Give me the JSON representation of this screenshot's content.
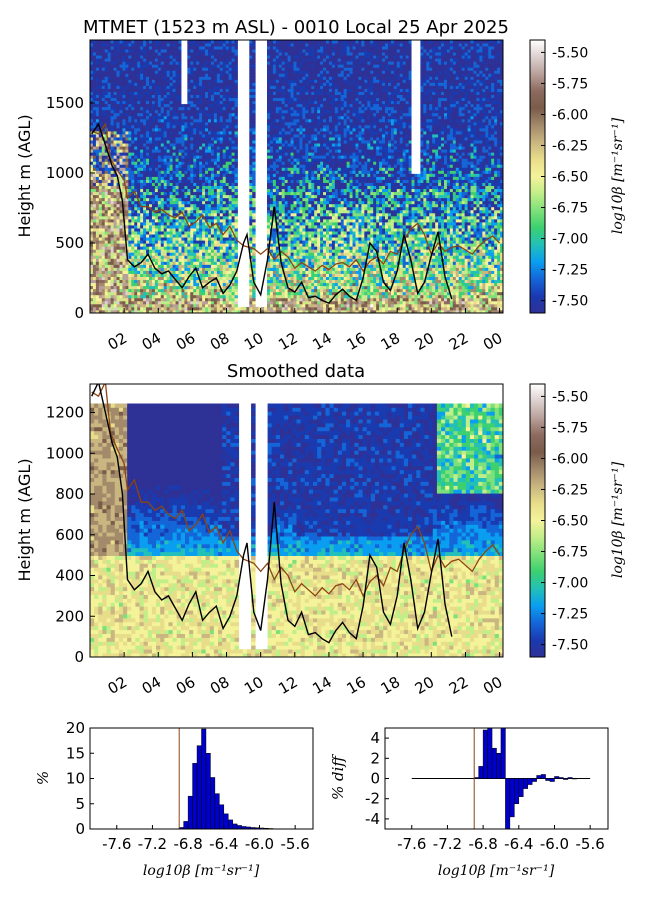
{
  "chart_data": [
    {
      "type": "heatmap",
      "title": "MTMET (1523 m ASL) - 0010 Local 25 Apr 2025",
      "ylabel": "Height m (AGL)",
      "xlabel": "",
      "ylim": [
        0,
        1950
      ],
      "yticks": [
        "0",
        "500",
        "1000",
        "1500"
      ],
      "ytick_values": [
        0,
        500,
        1000,
        1500
      ],
      "xticks": [
        "02",
        "04",
        "06",
        "08",
        "10",
        "12",
        "14",
        "16",
        "18",
        "20",
        "22",
        "00"
      ],
      "colorbar": {
        "label": "log10β [m⁻¹sr⁻¹]",
        "ticks": [
          "-5.50",
          "-5.75",
          "-6.00",
          "-6.25",
          "-6.50",
          "-6.75",
          "-7.00",
          "-7.25",
          "-7.50"
        ],
        "range": [
          -7.6,
          -5.4
        ]
      },
      "series": [
        {
          "values": [
            [
              0.1,
              1300
            ],
            [
              0.5,
              1280
            ],
            [
              0.9,
              1350
            ],
            [
              1.2,
              1100
            ],
            [
              1.6,
              1020
            ],
            [
              2.0,
              950
            ],
            [
              2.2,
              820
            ],
            [
              2.6,
              870
            ],
            [
              3.0,
              760
            ],
            [
              3.4,
              760
            ],
            [
              3.8,
              720
            ],
            [
              4.2,
              740
            ],
            [
              4.6,
              700
            ],
            [
              5.0,
              680
            ],
            [
              5.4,
              720
            ],
            [
              5.8,
              620
            ],
            [
              6.2,
              650
            ],
            [
              6.6,
              700
            ],
            [
              7.0,
              610
            ],
            [
              7.4,
              640
            ],
            [
              7.8,
              560
            ],
            [
              8.2,
              620
            ],
            [
              8.6,
              520
            ],
            [
              9.0,
              480
            ],
            [
              9.6,
              460
            ],
            [
              10.0,
              420
            ],
            [
              10.4,
              460
            ],
            [
              10.8,
              380
            ],
            [
              11.2,
              440
            ],
            [
              11.6,
              400
            ],
            [
              12.0,
              320
            ],
            [
              12.4,
              360
            ],
            [
              12.8,
              330
            ],
            [
              13.2,
              300
            ],
            [
              13.6,
              340
            ],
            [
              14.0,
              310
            ],
            [
              14.4,
              350
            ],
            [
              14.8,
              360
            ],
            [
              15.2,
              330
            ],
            [
              15.6,
              380
            ],
            [
              16.0,
              300
            ],
            [
              16.4,
              370
            ],
            [
              16.8,
              400
            ],
            [
              17.2,
              350
            ],
            [
              17.6,
              440
            ],
            [
              18.0,
              420
            ],
            [
              18.4,
              520
            ],
            [
              18.8,
              600
            ],
            [
              19.2,
              640
            ],
            [
              19.6,
              560
            ],
            [
              20.0,
              420
            ],
            [
              20.4,
              500
            ],
            [
              20.8,
              440
            ],
            [
              21.2,
              470
            ],
            [
              21.6,
              480
            ],
            [
              22.0,
              450
            ],
            [
              22.4,
              420
            ],
            [
              22.8,
              480
            ],
            [
              23.2,
              520
            ],
            [
              23.6,
              550
            ],
            [
              24.0,
              500
            ]
          ]
        },
        {
          "values": [
            [
              0.1,
              1280
            ],
            [
              0.5,
              1350
            ],
            [
              0.9,
              1200
            ],
            [
              1.3,
              1050
            ],
            [
              1.6,
              980
            ],
            [
              1.9,
              800
            ],
            [
              2.2,
              380
            ],
            [
              2.6,
              330
            ],
            [
              3.0,
              360
            ],
            [
              3.4,
              420
            ],
            [
              3.8,
              320
            ],
            [
              4.2,
              280
            ],
            [
              4.6,
              300
            ],
            [
              5.0,
              240
            ],
            [
              5.4,
              180
            ],
            [
              5.8,
              260
            ],
            [
              6.2,
              320
            ],
            [
              6.6,
              180
            ],
            [
              7.0,
              220
            ],
            [
              7.4,
              250
            ],
            [
              7.8,
              140
            ],
            [
              8.2,
              200
            ],
            [
              8.6,
              300
            ],
            [
              9.0,
              500
            ],
            [
              9.2,
              560
            ],
            [
              9.6,
              220
            ],
            [
              10.0,
              130
            ],
            [
              10.4,
              380
            ],
            [
              10.8,
              760
            ],
            [
              11.2,
              360
            ],
            [
              11.6,
              180
            ],
            [
              12.0,
              150
            ],
            [
              12.4,
              220
            ],
            [
              12.8,
              110
            ],
            [
              13.2,
              120
            ],
            [
              13.6,
              90
            ],
            [
              14.0,
              70
            ],
            [
              14.4,
              130
            ],
            [
              14.8,
              170
            ],
            [
              15.2,
              120
            ],
            [
              15.6,
              90
            ],
            [
              16.0,
              250
            ],
            [
              16.4,
              500
            ],
            [
              16.8,
              440
            ],
            [
              17.2,
              220
            ],
            [
              17.6,
              160
            ],
            [
              18.0,
              300
            ],
            [
              18.4,
              560
            ],
            [
              18.8,
              380
            ],
            [
              19.2,
              140
            ],
            [
              19.6,
              220
            ],
            [
              20.0,
              410
            ],
            [
              20.4,
              580
            ],
            [
              20.8,
              260
            ],
            [
              21.2,
              100
            ]
          ]
        }
      ]
    },
    {
      "type": "heatmap",
      "title": "Smoothed data",
      "ylabel": "Height m (AGL)",
      "xlabel": "",
      "ylim": [
        0,
        1340
      ],
      "yticks": [
        "0",
        "200",
        "400",
        "600",
        "800",
        "1000",
        "1200"
      ],
      "ytick_values": [
        0,
        200,
        400,
        600,
        800,
        1000,
        1200
      ],
      "xticks": [
        "02",
        "04",
        "06",
        "08",
        "10",
        "12",
        "14",
        "16",
        "18",
        "20",
        "22",
        "00"
      ],
      "colorbar": {
        "label": "log10β [m⁻¹sr⁻¹]",
        "ticks": [
          "-5.50",
          "-5.75",
          "-6.00",
          "-6.25",
          "-6.50",
          "-6.75",
          "-7.00",
          "-7.25",
          "-7.50"
        ],
        "range": [
          -7.6,
          -5.4
        ]
      }
    },
    {
      "type": "bar",
      "title": "",
      "ylabel": "%",
      "xlabel": "log10β [m⁻¹sr⁻¹]",
      "xticks": [
        "-7.6",
        "-7.2",
        "-6.8",
        "-6.4",
        "-6.0",
        "-5.6"
      ],
      "xtick_values": [
        -7.6,
        -7.2,
        -6.8,
        -6.4,
        -6.0,
        -5.6
      ],
      "xlim": [
        -7.9,
        -5.4
      ],
      "ylim": [
        0,
        20
      ],
      "yticks": [
        "0",
        "5",
        "10",
        "15",
        "20"
      ],
      "ytick_values": [
        0,
        5,
        10,
        15,
        20
      ],
      "bin_width": 0.05,
      "bins": [
        -6.9,
        -6.85,
        -6.8,
        -6.75,
        -6.7,
        -6.65,
        -6.6,
        -6.55,
        -6.5,
        -6.45,
        -6.4,
        -6.35,
        -6.3,
        -6.25,
        -6.2,
        -6.15,
        -6.1,
        -6.05,
        -6.0,
        -5.95,
        -5.9
      ],
      "values": [
        0.3,
        1.5,
        6.5,
        13.0,
        16.5,
        19.8,
        15.0,
        10.2,
        7.0,
        4.8,
        3.0,
        1.8,
        1.0,
        0.7,
        0.5,
        0.4,
        0.3,
        0.25,
        0.2,
        0.15,
        0.1
      ],
      "vline": -6.9
    },
    {
      "type": "bar",
      "title": "",
      "ylabel": "% diff",
      "xlabel": "log10β [m⁻¹sr⁻¹]",
      "xticks": [
        "-7.6",
        "-7.2",
        "-6.8",
        "-6.4",
        "-6.0",
        "-5.6"
      ],
      "xtick_values": [
        -7.6,
        -7.2,
        -6.8,
        -6.4,
        -6.0,
        -5.6
      ],
      "xlim": [
        -7.9,
        -5.4
      ],
      "ylim": [
        -5,
        5
      ],
      "yticks": [
        "-4",
        "-2",
        "0",
        "2",
        "4"
      ],
      "ytick_values": [
        -4,
        -2,
        0,
        2,
        4
      ],
      "bin_width": 0.05,
      "bins": [
        -6.9,
        -6.85,
        -6.8,
        -6.75,
        -6.7,
        -6.65,
        -6.6,
        -6.55,
        -6.5,
        -6.45,
        -6.4,
        -6.35,
        -6.3,
        -6.25,
        -6.2,
        -6.15,
        -6.1,
        -6.05,
        -6.0,
        -5.95,
        -5.9,
        -5.85,
        -5.8
      ],
      "values": [
        0.1,
        1.2,
        4.8,
        5.0,
        3.0,
        2.5,
        5.0,
        -5.0,
        -3.8,
        -2.5,
        -1.8,
        -1.0,
        -0.6,
        -0.3,
        0.3,
        0.4,
        -0.2,
        -0.3,
        0.2,
        0.1,
        -0.1,
        0.1,
        0.0
      ],
      "vline": -6.9
    }
  ],
  "colors": {
    "colormap": [
      "#2e3196",
      "#1a3ab0",
      "#1466d8",
      "#0a9ef0",
      "#22c0b8",
      "#3cd070",
      "#7ee07a",
      "#c0ee88",
      "#f5f39a",
      "#e8dd8a",
      "#c9b680",
      "#a38a6a",
      "#7a5c4a",
      "#8c6a5e",
      "#b8a09a",
      "#dcd0ce",
      "#ffffff"
    ],
    "bar": "#0000cc",
    "upper_line": "#8b4513",
    "lower_line": "#000000",
    "vline": "#8b4513"
  }
}
